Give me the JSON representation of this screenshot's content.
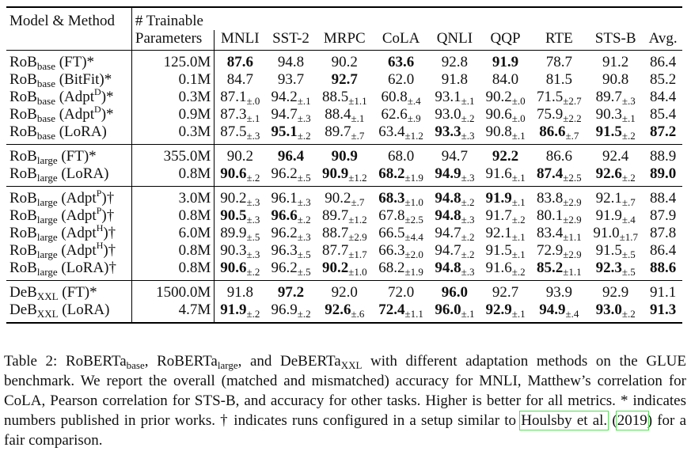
{
  "table": {
    "headers": {
      "model": "Model & Method",
      "params_line1": "# Trainable",
      "params_line2": "Parameters",
      "metrics": [
        "MNLI",
        "SST-2",
        "MRPC",
        "CoLA",
        "QNLI",
        "QQP",
        "RTE",
        "STS-B",
        "Avg."
      ]
    },
    "blocks": [
      [
        {
          "base": "RoB",
          "sub": "base",
          "sup": "",
          "suffix": "(FT)*",
          "params": "125.0M",
          "vals": [
            {
              "v": "87.6",
              "b": true
            },
            {
              "v": "94.8"
            },
            {
              "v": "90.2"
            },
            {
              "v": "63.6",
              "b": true
            },
            {
              "v": "92.8"
            },
            {
              "v": "91.9",
              "b": true
            },
            {
              "v": "78.7"
            },
            {
              "v": "91.2"
            },
            {
              "v": "86.4"
            }
          ]
        },
        {
          "base": "RoB",
          "sub": "base",
          "sup": "",
          "suffix": "(BitFit)*",
          "params": "0.1M",
          "vals": [
            {
              "v": "84.7"
            },
            {
              "v": "93.7"
            },
            {
              "v": "92.7",
              "b": true
            },
            {
              "v": "62.0"
            },
            {
              "v": "91.8"
            },
            {
              "v": "84.0"
            },
            {
              "v": "81.5"
            },
            {
              "v": "90.8"
            },
            {
              "v": "85.2"
            }
          ]
        },
        {
          "base": "RoB",
          "sub": "base",
          "pre": "(Adpt",
          "sup": "D",
          "suffix": ")*",
          "params": "0.3M",
          "vals": [
            {
              "v": "87.1",
              "pm": "±.0"
            },
            {
              "v": "94.2",
              "pm": "±.1"
            },
            {
              "v": "88.5",
              "pm": "±1.1"
            },
            {
              "v": "60.8",
              "pm": "±.4"
            },
            {
              "v": "93.1",
              "pm": "±.1"
            },
            {
              "v": "90.2",
              "pm": "±.0"
            },
            {
              "v": "71.5",
              "pm": "±2.7"
            },
            {
              "v": "89.7",
              "pm": "±.3"
            },
            {
              "v": "84.4"
            }
          ]
        },
        {
          "base": "RoB",
          "sub": "base",
          "pre": "(Adpt",
          "sup": "D",
          "suffix": ")*",
          "params": "0.9M",
          "vals": [
            {
              "v": "87.3",
              "pm": "±.1"
            },
            {
              "v": "94.7",
              "pm": "±.3"
            },
            {
              "v": "88.4",
              "pm": "±.1"
            },
            {
              "v": "62.6",
              "pm": "±.9"
            },
            {
              "v": "93.0",
              "pm": "±.2"
            },
            {
              "v": "90.6",
              "pm": "±.0"
            },
            {
              "v": "75.9",
              "pm": "±2.2"
            },
            {
              "v": "90.3",
              "pm": "±.1"
            },
            {
              "v": "85.4"
            }
          ]
        },
        {
          "base": "RoB",
          "sub": "base",
          "sup": "",
          "suffix": "(LoRA)",
          "params": "0.3M",
          "vals": [
            {
              "v": "87.5",
              "pm": "±.3"
            },
            {
              "v": "95.1",
              "pm": "±.2",
              "b": true
            },
            {
              "v": "89.7",
              "pm": "±.7"
            },
            {
              "v": "63.4",
              "pm": "±1.2"
            },
            {
              "v": "93.3",
              "pm": "±.3",
              "b": true
            },
            {
              "v": "90.8",
              "pm": "±.1"
            },
            {
              "v": "86.6",
              "pm": "±.7",
              "b": true
            },
            {
              "v": "91.5",
              "pm": "±.2",
              "b": true
            },
            {
              "v": "87.2",
              "b": true
            }
          ]
        }
      ],
      [
        {
          "base": "RoB",
          "sub": "large",
          "sup": "",
          "suffix": "(FT)*",
          "params": "355.0M",
          "vals": [
            {
              "v": "90.2"
            },
            {
              "v": "96.4",
              "b": true
            },
            {
              "v": "90.9",
              "b": true
            },
            {
              "v": "68.0"
            },
            {
              "v": "94.7"
            },
            {
              "v": "92.2",
              "b": true
            },
            {
              "v": "86.6"
            },
            {
              "v": "92.4"
            },
            {
              "v": "88.9"
            }
          ]
        },
        {
          "base": "RoB",
          "sub": "large",
          "sup": "",
          "suffix": "(LoRA)",
          "params": "0.8M",
          "vals": [
            {
              "v": "90.6",
              "pm": "±.2",
              "b": true
            },
            {
              "v": "96.2",
              "pm": "±.5"
            },
            {
              "v": "90.9",
              "pm": "±1.2",
              "b": true
            },
            {
              "v": "68.2",
              "pm": "±1.9",
              "b": true
            },
            {
              "v": "94.9",
              "pm": "±.3",
              "b": true
            },
            {
              "v": "91.6",
              "pm": "±.1"
            },
            {
              "v": "87.4",
              "pm": "±2.5",
              "b": true
            },
            {
              "v": "92.6",
              "pm": "±.2",
              "b": true
            },
            {
              "v": "89.0",
              "b": true
            }
          ]
        }
      ],
      [
        {
          "base": "RoB",
          "sub": "large",
          "pre": "(Adpt",
          "sup": "P",
          "suffix": ")†",
          "params": "3.0M",
          "vals": [
            {
              "v": "90.2",
              "pm": "±.3"
            },
            {
              "v": "96.1",
              "pm": "±.3"
            },
            {
              "v": "90.2",
              "pm": "±.7"
            },
            {
              "v": "68.3",
              "pm": "±1.0",
              "b": true
            },
            {
              "v": "94.8",
              "pm": "±.2",
              "b": true
            },
            {
              "v": "91.9",
              "pm": "±.1",
              "b": true
            },
            {
              "v": "83.8",
              "pm": "±2.9"
            },
            {
              "v": "92.1",
              "pm": "±.7"
            },
            {
              "v": "88.4"
            }
          ]
        },
        {
          "base": "RoB",
          "sub": "large",
          "pre": "(Adpt",
          "sup": "P",
          "suffix": ")†",
          "params": "0.8M",
          "vals": [
            {
              "v": "90.5",
              "pm": "±.3",
              "b": true
            },
            {
              "v": "96.6",
              "pm": "±.2",
              "b": true
            },
            {
              "v": "89.7",
              "pm": "±1.2"
            },
            {
              "v": "67.8",
              "pm": "±2.5"
            },
            {
              "v": "94.8",
              "pm": "±.3",
              "b": true
            },
            {
              "v": "91.7",
              "pm": "±.2"
            },
            {
              "v": "80.1",
              "pm": "±2.9"
            },
            {
              "v": "91.9",
              "pm": "±.4"
            },
            {
              "v": "87.9"
            }
          ]
        },
        {
          "base": "RoB",
          "sub": "large",
          "pre": "(Adpt",
          "sup": "H",
          "suffix": ")†",
          "params": "6.0M",
          "vals": [
            {
              "v": "89.9",
              "pm": "±.5"
            },
            {
              "v": "96.2",
              "pm": "±.3"
            },
            {
              "v": "88.7",
              "pm": "±2.9"
            },
            {
              "v": "66.5",
              "pm": "±4.4"
            },
            {
              "v": "94.7",
              "pm": "±.2"
            },
            {
              "v": "92.1",
              "pm": "±.1"
            },
            {
              "v": "83.4",
              "pm": "±1.1"
            },
            {
              "v": "91.0",
              "pm": "±1.7"
            },
            {
              "v": "87.8"
            }
          ]
        },
        {
          "base": "RoB",
          "sub": "large",
          "pre": "(Adpt",
          "sup": "H",
          "suffix": ")†",
          "params": "0.8M",
          "vals": [
            {
              "v": "90.3",
              "pm": "±.3"
            },
            {
              "v": "96.3",
              "pm": "±.5"
            },
            {
              "v": "87.7",
              "pm": "±1.7"
            },
            {
              "v": "66.3",
              "pm": "±2.0"
            },
            {
              "v": "94.7",
              "pm": "±.2"
            },
            {
              "v": "91.5",
              "pm": "±.1"
            },
            {
              "v": "72.9",
              "pm": "±2.9"
            },
            {
              "v": "91.5",
              "pm": "±.5"
            },
            {
              "v": "86.4"
            }
          ]
        },
        {
          "base": "RoB",
          "sub": "large",
          "sup": "",
          "suffix": "(LoRA)†",
          "params": "0.8M",
          "vals": [
            {
              "v": "90.6",
              "pm": "±.2",
              "b": true
            },
            {
              "v": "96.2",
              "pm": "±.5"
            },
            {
              "v": "90.2",
              "pm": "±1.0",
              "b": true
            },
            {
              "v": "68.2",
              "pm": "±1.9"
            },
            {
              "v": "94.8",
              "pm": "±.3",
              "b": true
            },
            {
              "v": "91.6",
              "pm": "±.2"
            },
            {
              "v": "85.2",
              "pm": "±1.1",
              "b": true
            },
            {
              "v": "92.3",
              "pm": "±.5",
              "b": true
            },
            {
              "v": "88.6",
              "b": true
            }
          ]
        }
      ],
      [
        {
          "base": "DeB",
          "sub": "XXL",
          "sup": "",
          "suffix": "(FT)*",
          "params": "1500.0M",
          "vals": [
            {
              "v": "91.8"
            },
            {
              "v": "97.2",
              "b": true
            },
            {
              "v": "92.0"
            },
            {
              "v": "72.0"
            },
            {
              "v": "96.0",
              "b": true
            },
            {
              "v": "92.7"
            },
            {
              "v": "93.9"
            },
            {
              "v": "92.9"
            },
            {
              "v": "91.1"
            }
          ]
        },
        {
          "base": "DeB",
          "sub": "XXL",
          "sup": "",
          "suffix": "(LoRA)",
          "params": "4.7M",
          "vals": [
            {
              "v": "91.9",
              "pm": "±.2",
              "b": true
            },
            {
              "v": "96.9",
              "pm": "±.2"
            },
            {
              "v": "92.6",
              "pm": "±.6",
              "b": true
            },
            {
              "v": "72.4",
              "pm": "±1.1",
              "b": true
            },
            {
              "v": "96.0",
              "pm": "±.1",
              "b": true
            },
            {
              "v": "92.9",
              "pm": "±.1",
              "b": true
            },
            {
              "v": "94.9",
              "pm": "±.4",
              "b": true
            },
            {
              "v": "93.0",
              "pm": "±.2",
              "b": true
            },
            {
              "v": "91.3",
              "b": true
            }
          ]
        }
      ]
    ]
  },
  "caption": {
    "p1": "Table 2: RoBERTa",
    "s1": "base",
    "p2": ", RoBERTa",
    "s2": "large",
    "p3": ", and DeBERTa",
    "s3": "XXL",
    "p4": " with different adaptation methods on the GLUE benchmark. We report the overall (matched and mismatched) accuracy for MNLI, Matthew’s correlation for CoLA, Pearson correlation for STS-B, and accuracy for other tasks. Higher is better for all metrics. * indicates numbers published in prior works. † indicates runs configured in a setup similar to ",
    "cite_author": "Houlsby et al.",
    "cite_mid": " (",
    "cite_year": "2019",
    "cite_end": ") for a fair comparison."
  }
}
